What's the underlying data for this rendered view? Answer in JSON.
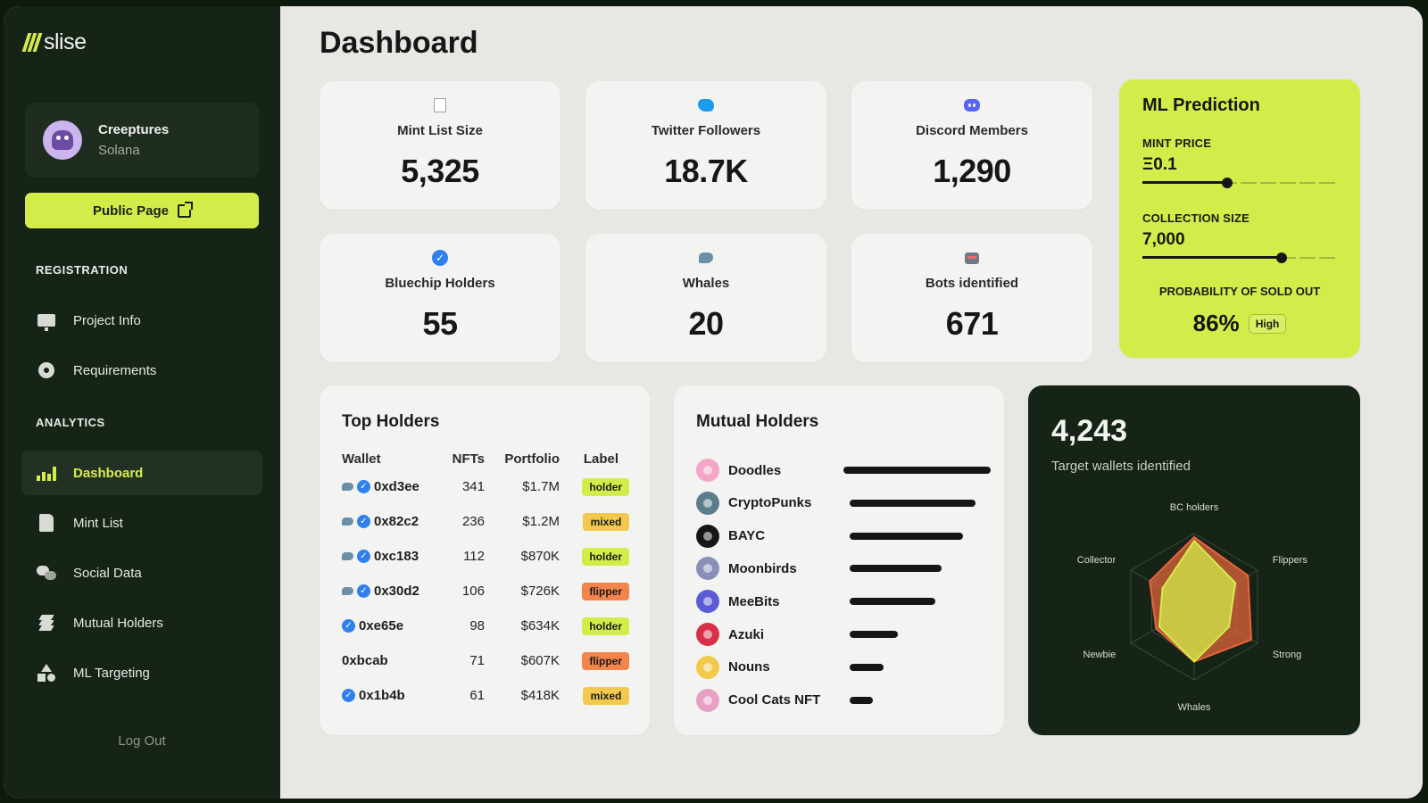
{
  "brand": {
    "name": "slise",
    "accent": "#d4ec4a",
    "sidebar_bg": "#162317"
  },
  "project": {
    "name": "Creeptures",
    "chain": "Solana",
    "public_page_label": "Public Page"
  },
  "sidebar": {
    "registration_label": "REGISTRATION",
    "registration_items": [
      {
        "label": "Project Info",
        "icon": "monitor-icon"
      },
      {
        "label": "Requirements",
        "icon": "gear-icon"
      }
    ],
    "analytics_label": "ANALYTICS",
    "analytics_items": [
      {
        "label": "Dashboard",
        "icon": "chart-icon",
        "active": true
      },
      {
        "label": "Mint List",
        "icon": "document-icon"
      },
      {
        "label": "Social Data",
        "icon": "chat-icon"
      },
      {
        "label": "Mutual Holders",
        "icon": "layers-icon"
      },
      {
        "label": "ML Targeting",
        "icon": "shapes-icon"
      }
    ],
    "logout_label": "Log Out"
  },
  "page": {
    "title": "Dashboard"
  },
  "stats": [
    {
      "label": "Mint List Size",
      "value": "5,325",
      "icon": "notepad-icon"
    },
    {
      "label": "Twitter Followers",
      "value": "18.7K",
      "icon": "twitter-icon"
    },
    {
      "label": "Discord Members",
      "value": "1,290",
      "icon": "discord-icon"
    },
    {
      "label": "Bluechip Holders",
      "value": "55",
      "icon": "verified-check-icon"
    },
    {
      "label": "Whales",
      "value": "20",
      "icon": "whale-icon"
    },
    {
      "label": "Bots identified",
      "value": "671",
      "icon": "robot-icon"
    }
  ],
  "ml_prediction": {
    "title": "ML Prediction",
    "mint_price_label": "MINT PRICE",
    "mint_price_value": "Ξ0.1",
    "mint_price_level": 0.44,
    "collection_size_label": "COLLECTION SIZE",
    "collection_size_value": "7,000",
    "collection_size_level": 0.72,
    "probability_label": "PROBABILITY OF SOLD OUT",
    "probability_value": "86%",
    "probability_badge": "High"
  },
  "top_holders": {
    "title": "Top Holders",
    "columns": [
      "Wallet",
      "NFTs",
      "Portfolio",
      "Label"
    ],
    "rows": [
      {
        "wallet": "0xd3ee",
        "whale": true,
        "verified": true,
        "nfts": "341",
        "portfolio": "$1.7M",
        "label": "holder"
      },
      {
        "wallet": "0x82c2",
        "whale": true,
        "verified": true,
        "nfts": "236",
        "portfolio": "$1.2M",
        "label": "mixed"
      },
      {
        "wallet": "0xc183",
        "whale": true,
        "verified": true,
        "nfts": "112",
        "portfolio": "$870K",
        "label": "holder"
      },
      {
        "wallet": "0x30d2",
        "whale": true,
        "verified": true,
        "nfts": "106",
        "portfolio": "$726K",
        "label": "flipper"
      },
      {
        "wallet": "0xe65e",
        "whale": false,
        "verified": true,
        "nfts": "98",
        "portfolio": "$634K",
        "label": "holder"
      },
      {
        "wallet": "0xbcab",
        "whale": false,
        "verified": false,
        "nfts": "71",
        "portfolio": "$607K",
        "label": "flipper"
      },
      {
        "wallet": "0x1b4b",
        "whale": false,
        "verified": true,
        "nfts": "61",
        "portfolio": "$418K",
        "label": "mixed"
      }
    ],
    "label_colors": {
      "holder": "#d4ec4a",
      "mixed": "#f2c94c",
      "flipper": "#f2844c"
    }
  },
  "mutual_holders": {
    "title": "Mutual Holders",
    "items": [
      {
        "name": "Doodles",
        "share": 1.0,
        "color": "#f4a6c8"
      },
      {
        "name": "CryptoPunks",
        "share": 0.81,
        "color": "#5b7d8c"
      },
      {
        "name": "BAYC",
        "share": 0.73,
        "color": "#161616"
      },
      {
        "name": "Moonbirds",
        "share": 0.59,
        "color": "#8a8fb8"
      },
      {
        "name": "MeeBits",
        "share": 0.55,
        "color": "#5b5bd6"
      },
      {
        "name": "Azuki",
        "share": 0.31,
        "color": "#d9304a"
      },
      {
        "name": "Nouns",
        "share": 0.22,
        "color": "#f2c94c"
      },
      {
        "name": "Cool Cats NFT",
        "share": 0.15,
        "color": "#e6a0c4"
      }
    ]
  },
  "targets": {
    "count": "4,243",
    "subtitle": "Target wallets identified",
    "chart_data": {
      "type": "radar",
      "axes": [
        "BC holders",
        "Flippers",
        "Strong",
        "Whales",
        "Newbie",
        "Collector"
      ],
      "series": [
        {
          "values": [
            0.95,
            0.85,
            0.9,
            0.75,
            0.6,
            0.7
          ],
          "color": "#e8663c"
        },
        {
          "values": [
            0.9,
            0.65,
            0.55,
            0.75,
            0.55,
            0.5
          ],
          "color": "#d4ec4a"
        }
      ],
      "rmax": 1.0
    }
  }
}
